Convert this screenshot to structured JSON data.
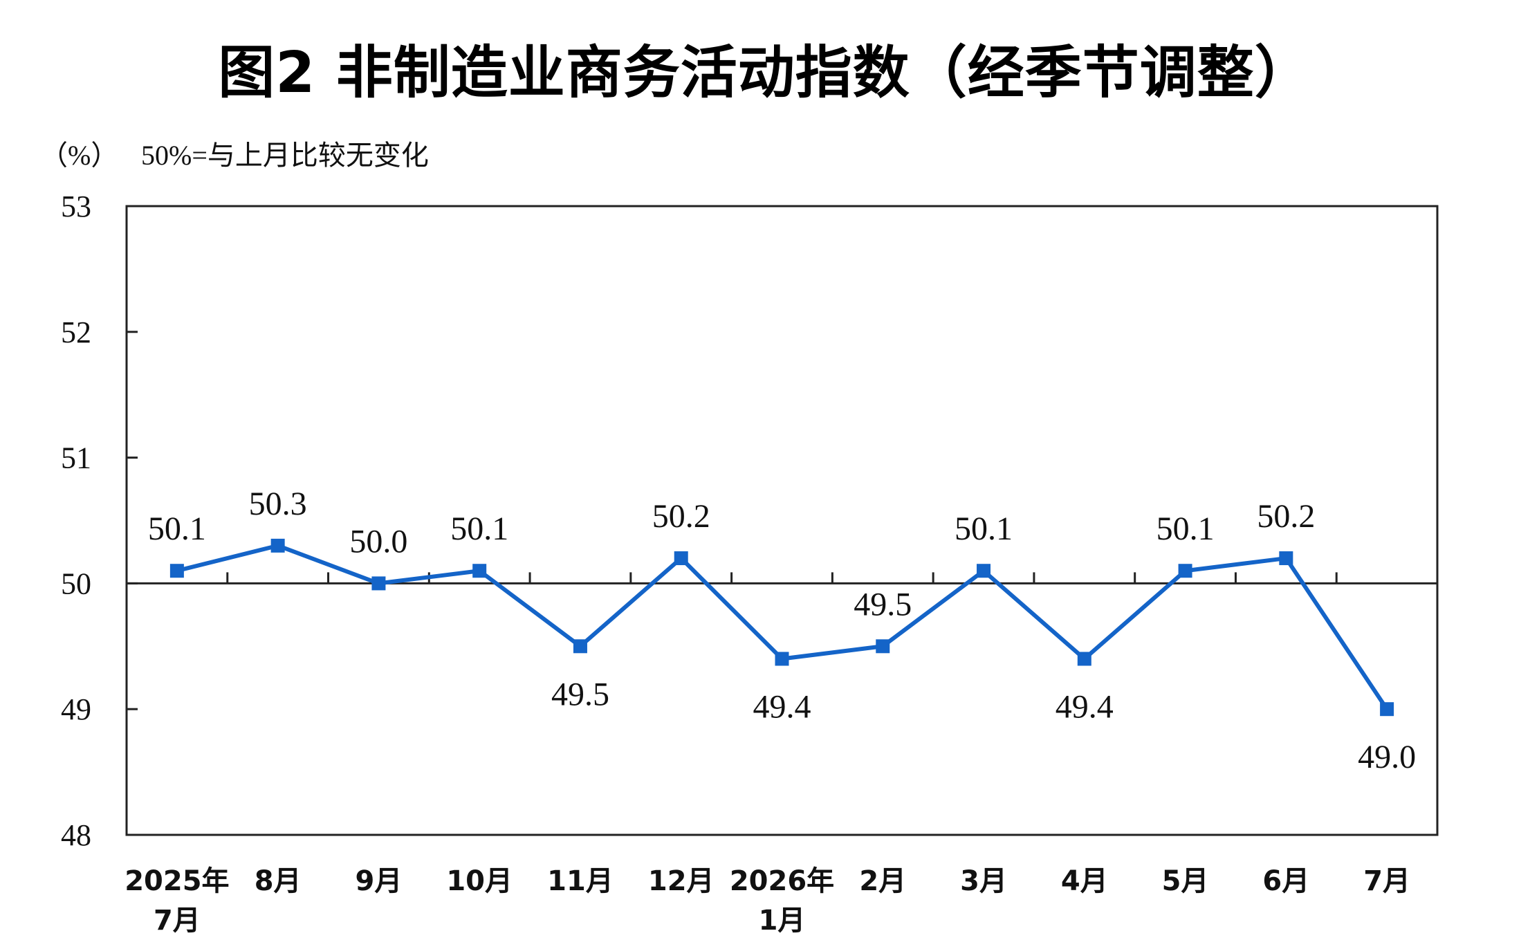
{
  "chart_data": {
    "type": "line",
    "title": "图2  非制造业商务活动指数（经季节调整）",
    "ylabel": "（%）",
    "note": "50%=与上月比较无变化",
    "ylim": [
      48,
      53
    ],
    "yticks": [
      "48",
      "49",
      "50",
      "51",
      "52",
      "53"
    ],
    "reference_line": 50,
    "categories": [
      [
        "2025年",
        "7月"
      ],
      [
        "8月"
      ],
      [
        "9月"
      ],
      [
        "10月"
      ],
      [
        "11月"
      ],
      [
        "12月"
      ],
      [
        "2026年",
        "1月"
      ],
      [
        "2月"
      ],
      [
        "3月"
      ],
      [
        "4月"
      ],
      [
        "5月"
      ],
      [
        "6月"
      ],
      [
        "7月"
      ]
    ],
    "series": [
      {
        "values": [
          50.1,
          50.3,
          50.0,
          50.1,
          49.5,
          50.2,
          49.4,
          49.5,
          50.1,
          49.4,
          50.1,
          50.2,
          49.0
        ],
        "labels": [
          "50.1",
          "50.3",
          "50.0",
          "50.1",
          "49.5",
          "50.2",
          "49.4",
          "49.5",
          "50.1",
          "49.4",
          "50.1",
          "50.2",
          "49.0"
        ],
        "label_position": [
          "above",
          "above",
          "above",
          "above",
          "below",
          "above",
          "below",
          "above",
          "above",
          "below",
          "above",
          "above",
          "below"
        ]
      }
    ],
    "colors": {
      "line": "#1464C8",
      "marker": "#1464C8",
      "axis": "#222222",
      "reference": "#222222"
    },
    "grid": false
  }
}
